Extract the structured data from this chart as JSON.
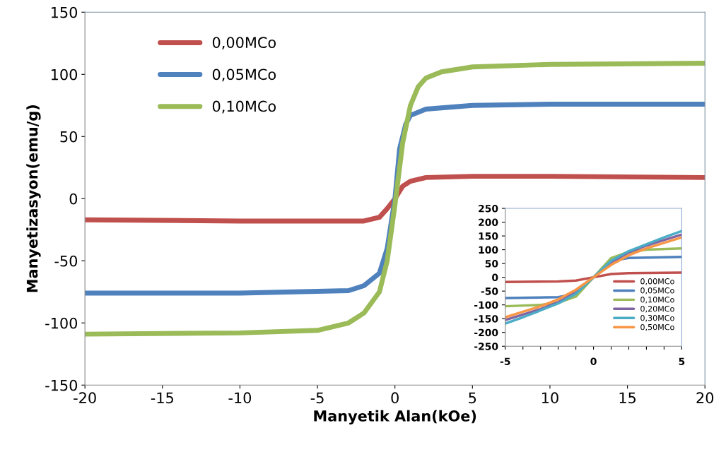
{
  "chart_data": [
    {
      "type": "line",
      "xlabel": "Manyetik Alan(kOe)",
      "ylabel": "Manyetizasyon(emu/g)",
      "xlim": [
        -20,
        20
      ],
      "ylim": [
        -150,
        150
      ],
      "xticks": [
        -20,
        -15,
        -10,
        -5,
        0,
        5,
        10,
        15,
        20
      ],
      "yticks": [
        -150,
        -100,
        -50,
        0,
        50,
        100,
        150
      ],
      "grid": false,
      "legend": "top left",
      "marker": "none",
      "line_style": "solid",
      "series": [
        {
          "name": "0,00MCo",
          "color": "#c0504d",
          "x": [
            -20,
            -10,
            -2,
            -1,
            -0.5,
            0,
            0.5,
            1,
            2,
            5,
            10,
            20
          ],
          "values": [
            -17,
            -18,
            -18,
            -15,
            -8,
            0,
            10,
            14,
            17,
            18,
            18,
            17
          ]
        },
        {
          "name": "0,05MCo",
          "color": "#4f81bd",
          "x": [
            -20,
            -10,
            -3,
            -2,
            -1,
            -0.5,
            0,
            0.3,
            0.7,
            1,
            2,
            5,
            10,
            20
          ],
          "values": [
            -76,
            -76,
            -74,
            -70,
            -60,
            -40,
            0,
            40,
            60,
            67,
            72,
            75,
            76,
            76
          ]
        },
        {
          "name": "0,10MCo",
          "color": "#9bbb59",
          "x": [
            -20,
            -10,
            -5,
            -3,
            -2,
            -1,
            -0.5,
            0,
            0.5,
            1,
            1.5,
            2,
            3,
            5,
            10,
            20
          ],
          "values": [
            -109,
            -108,
            -106,
            -100,
            -92,
            -75,
            -50,
            -5,
            45,
            75,
            90,
            97,
            102,
            106,
            108,
            109
          ]
        }
      ]
    },
    {
      "type": "line",
      "xlim": [
        -5,
        5
      ],
      "ylim": [
        -250,
        250
      ],
      "xticks": [
        -5,
        {
          "value": -4,
          "label": null
        },
        {
          "value": -3,
          "label": null
        },
        {
          "value": -2,
          "label": null
        },
        {
          "value": -1,
          "label": null
        },
        0,
        {
          "value": 1,
          "label": null
        },
        {
          "value": 2,
          "label": null
        },
        {
          "value": 3,
          "label": null
        },
        {
          "value": 4,
          "label": null
        },
        5
      ],
      "yticks": [
        -250,
        -200,
        -150,
        -100,
        -50,
        0,
        50,
        100,
        150,
        200,
        250
      ],
      "grid": false,
      "legend": "center right",
      "marker": "none",
      "line_style": "solid",
      "series": [
        {
          "name": "0,00MCo",
          "color": "#c0504d",
          "x": [
            -5,
            -2,
            -1,
            0,
            1,
            2,
            5
          ],
          "values": [
            -17,
            -15,
            -12,
            0,
            12,
            15,
            17
          ]
        },
        {
          "name": "0,05MCo",
          "color": "#4f81bd",
          "x": [
            -5,
            -2,
            -1,
            0,
            1,
            2,
            5
          ],
          "values": [
            -75,
            -72,
            -60,
            0,
            60,
            70,
            74
          ]
        },
        {
          "name": "0,10MCo",
          "color": "#9bbb59",
          "x": [
            -5,
            -3,
            -2,
            -1,
            0,
            1,
            2,
            3,
            5
          ],
          "values": [
            -105,
            -100,
            -92,
            -70,
            0,
            70,
            92,
            100,
            105
          ]
        },
        {
          "name": "0,20MCo",
          "color": "#8064a2",
          "x": [
            -5,
            -4,
            -3,
            -2,
            -1,
            0,
            1,
            2,
            3,
            4,
            5
          ],
          "values": [
            -155,
            -135,
            -115,
            -90,
            -55,
            0,
            55,
            90,
            115,
            135,
            155
          ]
        },
        {
          "name": "0,30MCo",
          "color": "#4bacc6",
          "x": [
            -5,
            -4,
            -3,
            -2,
            -1,
            0,
            1,
            2,
            3,
            4,
            5
          ],
          "values": [
            -168,
            -145,
            -120,
            -95,
            -60,
            0,
            60,
            95,
            120,
            145,
            168
          ]
        },
        {
          "name": "0,50MCo",
          "color": "#f79646",
          "x": [
            -5,
            -4,
            -3,
            -2,
            -1,
            0,
            1,
            2,
            3,
            4,
            5
          ],
          "values": [
            -145,
            -125,
            -105,
            -80,
            -45,
            0,
            45,
            80,
            105,
            125,
            145
          ]
        }
      ]
    }
  ]
}
